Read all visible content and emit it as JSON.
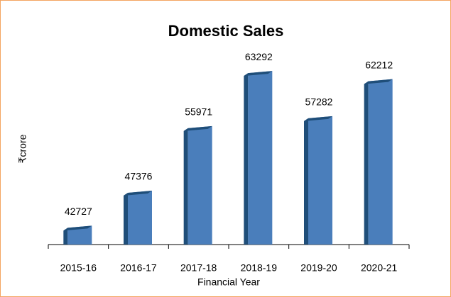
{
  "chart_data": {
    "type": "bar",
    "title": "Domestic Sales",
    "y_label": "₹crore",
    "x_label": "Financial Year",
    "categories": [
      "2015-16",
      "2016-17",
      "2017-18",
      "2018-19",
      "2019-20",
      "2020-21"
    ],
    "values": [
      42727,
      47376,
      55971,
      63292,
      57282,
      62212
    ],
    "color": "#4a7ebb",
    "side_color": "#1f4e79",
    "ylim": [
      40500,
      65000
    ],
    "grid": false,
    "data_labels": true
  }
}
